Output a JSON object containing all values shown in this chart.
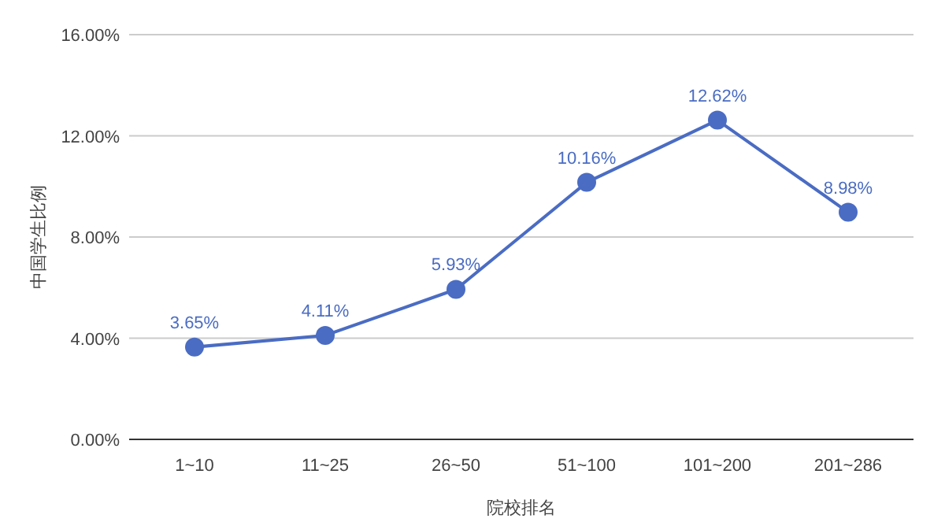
{
  "chart_data": {
    "type": "line",
    "xlabel": "院校排名",
    "ylabel": "中国学生比例",
    "categories": [
      "1~10",
      "11~25",
      "26~50",
      "51~100",
      "101~200",
      "201~286"
    ],
    "series": [
      {
        "color": "#4a6cc3",
        "values": [
          3.65,
          4.11,
          5.93,
          10.16,
          12.62,
          8.98
        ],
        "value_labels": [
          "3.65%",
          "4.11%",
          "5.93%",
          "10.16%",
          "12.62%",
          "8.98%"
        ]
      }
    ],
    "ylim": [
      0,
      16
    ],
    "yticks": [
      {
        "value": 0,
        "label": "0.00%"
      },
      {
        "value": 4,
        "label": "4.00%"
      },
      {
        "value": 8,
        "label": "8.00%"
      },
      {
        "value": 12,
        "label": "12.00%"
      },
      {
        "value": 16,
        "label": "16.00%"
      }
    ],
    "grid": "y",
    "marker": "circle",
    "line_style": "solid"
  }
}
